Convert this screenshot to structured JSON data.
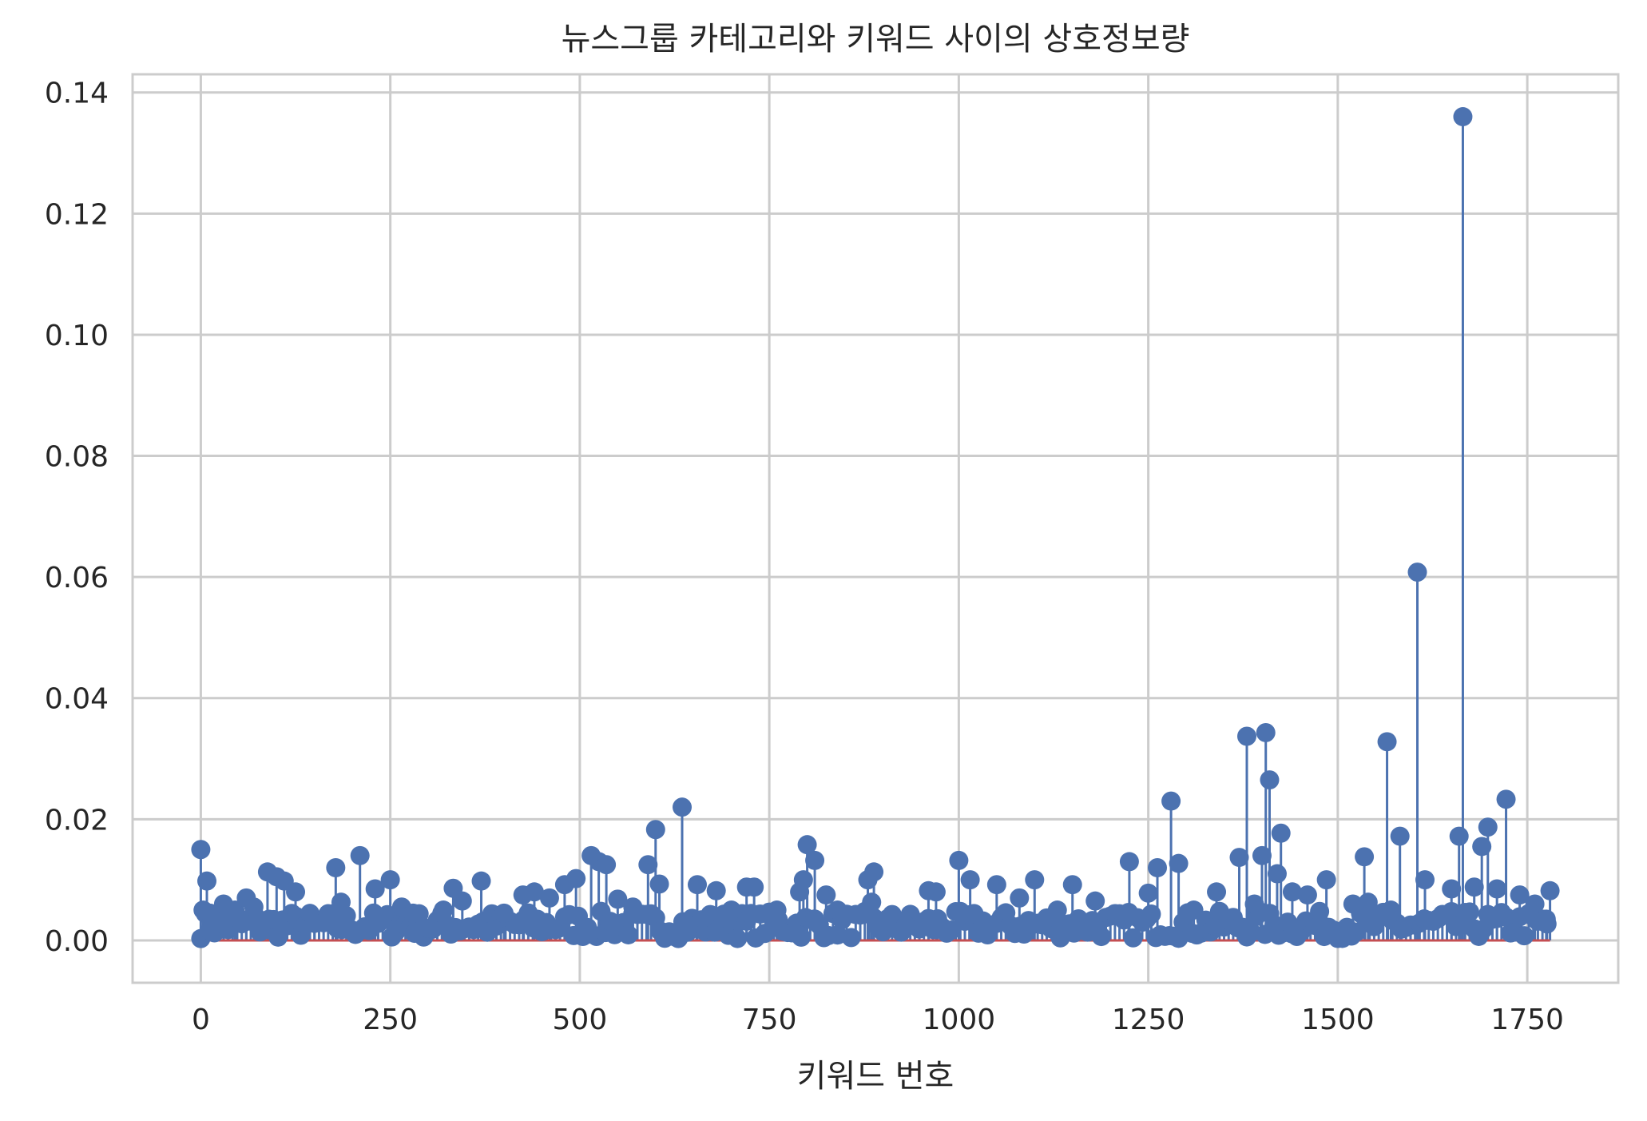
{
  "chart_data": {
    "type": "stem",
    "title": "뉴스그룹 카테고리와 키워드 사이의 상호정보량",
    "xlabel": "키워드 번호",
    "ylabel": "",
    "xlim": [
      -90,
      1870
    ],
    "ylim": [
      -0.007,
      0.143
    ],
    "xticks": [
      0,
      250,
      500,
      750,
      1000,
      1250,
      1500,
      1750
    ],
    "xtick_labels": [
      "0",
      "250",
      "500",
      "750",
      "1000",
      "1250",
      "1500",
      "1750"
    ],
    "yticks": [
      0.0,
      0.02,
      0.04,
      0.06,
      0.08,
      0.1,
      0.12,
      0.14
    ],
    "ytick_labels": [
      "0.00",
      "0.02",
      "0.04",
      "0.06",
      "0.08",
      "0.10",
      "0.12",
      "0.14"
    ],
    "grid": true,
    "baseline": 0,
    "colors": {
      "stem": "#4c72b0",
      "marker": "#4c72b0",
      "baseline": "#c44e52",
      "grid": "#cccccc",
      "axes_edge": "#cccccc"
    },
    "x": [
      0,
      3,
      8,
      12,
      20,
      30,
      45,
      60,
      70,
      88,
      100,
      110,
      125,
      150,
      178,
      185,
      210,
      230,
      250,
      265,
      280,
      300,
      320,
      333,
      345,
      370,
      400,
      425,
      440,
      460,
      480,
      495,
      515,
      525,
      535,
      550,
      570,
      590,
      600,
      605,
      635,
      655,
      680,
      700,
      720,
      730,
      760,
      790,
      795,
      800,
      810,
      825,
      840,
      880,
      885,
      888,
      900,
      930,
      960,
      970,
      1000,
      1015,
      1050,
      1080,
      1100,
      1130,
      1150,
      1180,
      1225,
      1250,
      1262,
      1280,
      1290,
      1310,
      1340,
      1370,
      1380,
      1390,
      1400,
      1405,
      1410,
      1420,
      1425,
      1440,
      1460,
      1485,
      1520,
      1535,
      1540,
      1565,
      1570,
      1582,
      1605,
      1615,
      1650,
      1660,
      1665,
      1680,
      1690,
      1698,
      1710,
      1722,
      1740,
      1760,
      1775,
      1780
    ],
    "values": [
      0.015,
      0.005,
      0.0098,
      0.0045,
      0.003,
      0.006,
      0.005,
      0.007,
      0.0055,
      0.0113,
      0.0105,
      0.0098,
      0.008,
      0.0028,
      0.012,
      0.0063,
      0.014,
      0.0085,
      0.01,
      0.0055,
      0.0045,
      0.002,
      0.005,
      0.0086,
      0.0065,
      0.0098,
      0.0045,
      0.0075,
      0.008,
      0.007,
      0.0092,
      0.0102,
      0.014,
      0.013,
      0.0125,
      0.0068,
      0.0055,
      0.0125,
      0.0183,
      0.0093,
      0.022,
      0.0092,
      0.0082,
      0.005,
      0.0088,
      0.0088,
      0.005,
      0.008,
      0.01,
      0.0158,
      0.0132,
      0.0075,
      0.005,
      0.01,
      0.0063,
      0.0113,
      0.003,
      0.0025,
      0.0082,
      0.008,
      0.0132,
      0.01,
      0.0092,
      0.007,
      0.01,
      0.005,
      0.0092,
      0.0065,
      0.013,
      0.0078,
      0.012,
      0.023,
      0.0127,
      0.005,
      0.008,
      0.0137,
      0.0337,
      0.006,
      0.014,
      0.0343,
      0.0265,
      0.011,
      0.0177,
      0.008,
      0.0075,
      0.01,
      0.006,
      0.0138,
      0.0063,
      0.0328,
      0.005,
      0.0172,
      0.0608,
      0.01,
      0.0085,
      0.0172,
      0.136,
      0.0088,
      0.0155,
      0.0187,
      0.0085,
      0.0233,
      0.0075,
      0.006,
      0.0035,
      0.0082
    ]
  }
}
